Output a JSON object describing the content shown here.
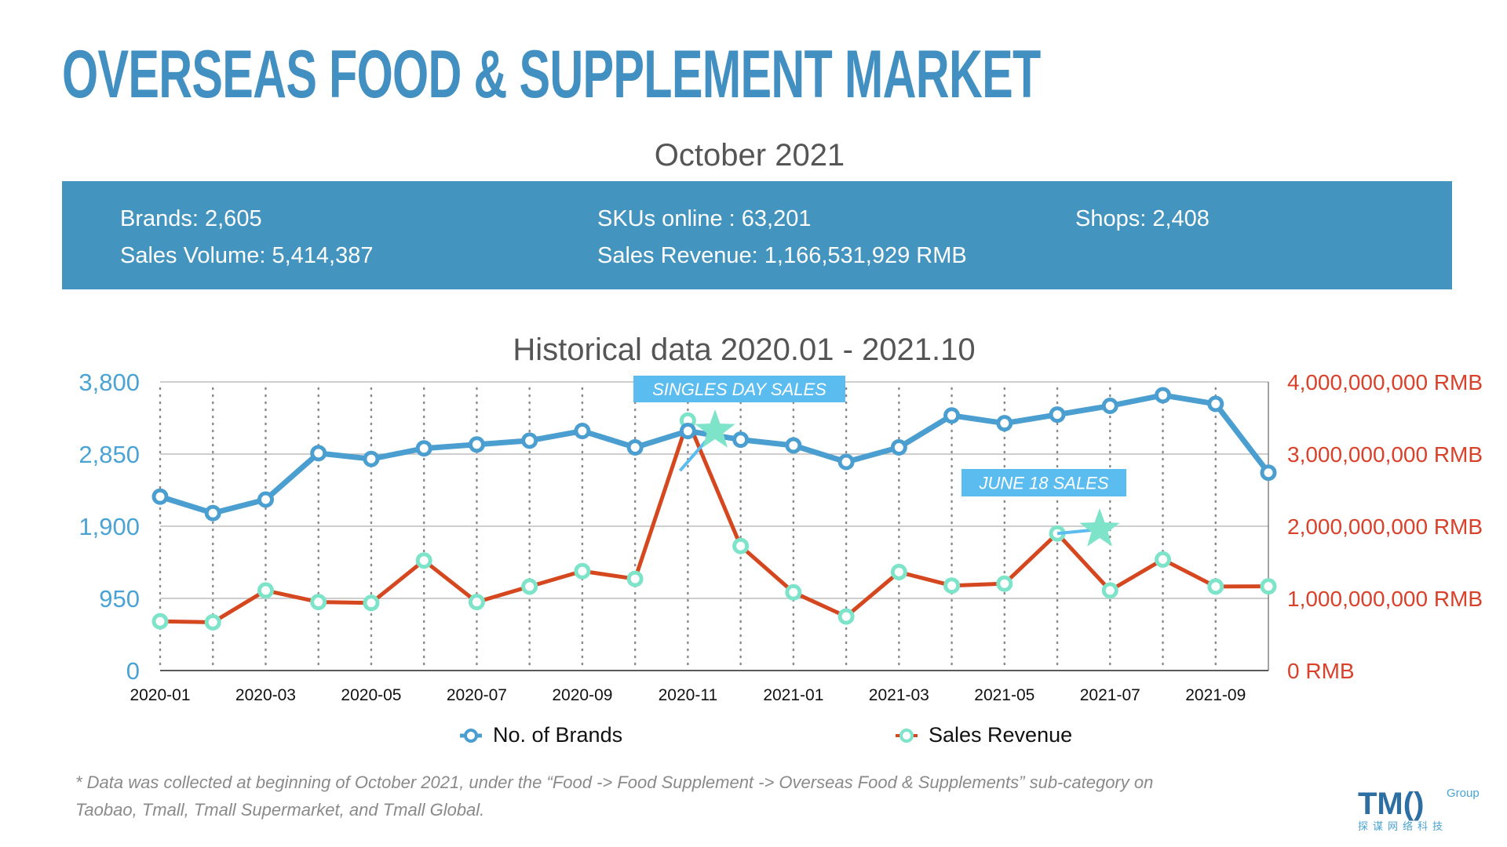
{
  "header": {
    "title": "OVERSEAS FOOD & SUPPLEMENT MARKET",
    "subtitle": "October 2021"
  },
  "stats": {
    "brands": "Brands: 2,605",
    "skus": "SKUs online : 63,201",
    "shops": "Shops: 2,408",
    "volume": "Sales Volume: 5,414,387",
    "revenue": "Sales Revenue: 1,166,531,929 RMB"
  },
  "colors": {
    "brand_blue": "#4a9fd0",
    "revenue_red": "#d4471f",
    "marker_teal": "#7de3c9",
    "banner": "#4394bf",
    "callout": "#5bbcef"
  },
  "chart_data": {
    "type": "line",
    "title": "Historical data 2020.01 - 2021.10",
    "x": [
      "2020-01",
      "2020-02",
      "2020-03",
      "2020-04",
      "2020-05",
      "2020-06",
      "2020-07",
      "2020-08",
      "2020-09",
      "2020-10",
      "2020-11",
      "2020-12",
      "2021-01",
      "2021-02",
      "2021-03",
      "2021-04",
      "2021-05",
      "2021-06",
      "2021-07",
      "2021-08",
      "2021-09",
      "2021-10"
    ],
    "x_tick_labels": [
      "2020-01",
      "2020-03",
      "2020-05",
      "2020-07",
      "2020-09",
      "2020-11",
      "2021-01",
      "2021-03",
      "2021-05",
      "2021-07",
      "2021-09"
    ],
    "y_left": {
      "range": [
        0,
        3800
      ],
      "ticks": [
        "0",
        "950",
        "1,900",
        "2,850",
        "3,800"
      ],
      "tick_values": [
        0,
        950,
        1900,
        2850,
        3800
      ]
    },
    "y_right": {
      "range": [
        0,
        4000000000
      ],
      "ticks": [
        "0 RMB",
        "1,000,000,000 RMB",
        "2,000,000,000 RMB",
        "3,000,000,000 RMB",
        "4,000,000,000 RMB"
      ],
      "tick_values": [
        0,
        1000000000,
        2000000000,
        3000000000,
        4000000000
      ]
    },
    "grid": true,
    "legend_placement": "bottom",
    "series": [
      {
        "name": "No. of Brands",
        "axis": "left",
        "values": [
          2290,
          2073,
          2251,
          2862,
          2786,
          2925,
          2976,
          3027,
          3154,
          2938,
          3154,
          3040,
          2964,
          2747,
          2938,
          3358,
          3256,
          3370,
          3485,
          3625,
          3511,
          2605
        ]
      },
      {
        "name": "Sales Revenue",
        "axis": "right",
        "values": [
          682000000,
          669000000,
          1110000000,
          950000000,
          937000000,
          1525000000,
          950000000,
          1164000000,
          1378000000,
          1271000000,
          3465000000,
          1726000000,
          1084000000,
          749000000,
          1365000000,
          1177000000,
          1204000000,
          1900000000,
          1110000000,
          1539000000,
          1164000000,
          1166531929
        ]
      }
    ],
    "annotations": [
      {
        "text": "SINGLES DAY SALES",
        "x": "2020-11"
      },
      {
        "text": "JUNE 18 SALES",
        "x": "2021-06"
      }
    ]
  },
  "footnote": {
    "line1": "* Data was collected at beginning of October 2021, under the “Food -> Food Supplement -> Overseas Food & Supplements” sub-category on",
    "line2": "Taobao, Tmall, Tmall Supermarket, and Tmall Global."
  },
  "logo": {
    "text": "TMO Group",
    "sub": "探 谋 网 络 科 技"
  }
}
